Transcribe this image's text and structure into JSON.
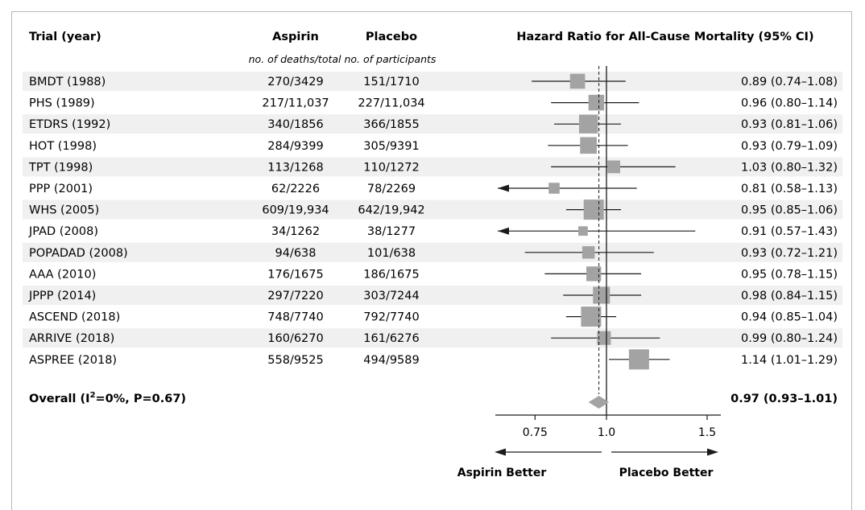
{
  "chart_data": {
    "type": "forest",
    "title": "Hazard Ratio for All-Cause Mortality (95% CI)",
    "headers": {
      "trial": "Trial (year)",
      "aspirin": "Aspirin",
      "placebo": "Placebo",
      "subheader": "no. of deaths/total no. of participants"
    },
    "rows": [
      {
        "trial": "BMDT (1988)",
        "aspirin": "270/3429",
        "placebo": "151/1710",
        "hr": 0.89,
        "lo": 0.74,
        "hi": 1.08,
        "label": "0.89 (0.74–1.08)"
      },
      {
        "trial": "PHS (1989)",
        "aspirin": "217/11,037",
        "placebo": "227/11,034",
        "hr": 0.96,
        "lo": 0.8,
        "hi": 1.14,
        "label": "0.96 (0.80–1.14)"
      },
      {
        "trial": "ETDRS (1992)",
        "aspirin": "340/1856",
        "placebo": "366/1855",
        "hr": 0.93,
        "lo": 0.81,
        "hi": 1.06,
        "label": "0.93 (0.81–1.06)"
      },
      {
        "trial": "HOT (1998)",
        "aspirin": "284/9399",
        "placebo": "305/9391",
        "hr": 0.93,
        "lo": 0.79,
        "hi": 1.09,
        "label": "0.93 (0.79–1.09)"
      },
      {
        "trial": "TPT (1998)",
        "aspirin": "113/1268",
        "placebo": "110/1272",
        "hr": 1.03,
        "lo": 0.8,
        "hi": 1.32,
        "label": "1.03 (0.80–1.32)"
      },
      {
        "trial": "PPP (2001)",
        "aspirin": "62/2226",
        "placebo": "78/2269",
        "hr": 0.81,
        "lo": 0.58,
        "hi": 1.13,
        "label": "0.81 (0.58–1.13)"
      },
      {
        "trial": "WHS (2005)",
        "aspirin": "609/19,934",
        "placebo": "642/19,942",
        "hr": 0.95,
        "lo": 0.85,
        "hi": 1.06,
        "label": "0.95 (0.85–1.06)"
      },
      {
        "trial": "JPAD (2008)",
        "aspirin": "34/1262",
        "placebo": "38/1277",
        "hr": 0.91,
        "lo": 0.57,
        "hi": 1.43,
        "label": "0.91 (0.57–1.43)"
      },
      {
        "trial": "POPADAD (2008)",
        "aspirin": "94/638",
        "placebo": "101/638",
        "hr": 0.93,
        "lo": 0.72,
        "hi": 1.21,
        "label": "0.93 (0.72–1.21)"
      },
      {
        "trial": "AAA (2010)",
        "aspirin": "176/1675",
        "placebo": "186/1675",
        "hr": 0.95,
        "lo": 0.78,
        "hi": 1.15,
        "label": "0.95 (0.78–1.15)"
      },
      {
        "trial": "JPPP (2014)",
        "aspirin": "297/7220",
        "placebo": "303/7244",
        "hr": 0.98,
        "lo": 0.84,
        "hi": 1.15,
        "label": "0.98 (0.84–1.15)"
      },
      {
        "trial": "ASCEND (2018)",
        "aspirin": "748/7740",
        "placebo": "792/7740",
        "hr": 0.94,
        "lo": 0.85,
        "hi": 1.04,
        "label": "0.94 (0.85–1.04)"
      },
      {
        "trial": "ARRIVE (2018)",
        "aspirin": "160/6270",
        "placebo": "161/6276",
        "hr": 0.99,
        "lo": 0.8,
        "hi": 1.24,
        "label": "0.99 (0.80–1.24)"
      },
      {
        "trial": "ASPREE (2018)",
        "aspirin": "558/9525",
        "placebo": "494/9589",
        "hr": 1.14,
        "lo": 1.01,
        "hi": 1.29,
        "label": "1.14 (1.01–1.29)"
      }
    ],
    "overall": {
      "label_prefix": "Overall (I",
      "label_sup": "2",
      "label_suffix": "=0%, P=0.67)",
      "hr": 0.97,
      "lo": 0.93,
      "hi": 1.01,
      "ci_label": "0.97 (0.93–1.01)"
    },
    "x_axis": {
      "ticks": [
        0.75,
        1.0,
        1.5
      ],
      "tick_labels": [
        "0.75",
        "1.0",
        "1.5"
      ],
      "scale": "log",
      "range": [
        0.6,
        1.5
      ]
    },
    "reference_line": 1.0,
    "pooled_line": 0.97,
    "direction_labels": {
      "left": "Aspirin Better",
      "right": "Placebo Better"
    },
    "colors": {
      "marker": "#a3a3a3",
      "row_stripe": "#f0f0f0",
      "line": "#1a1a1a"
    }
  }
}
